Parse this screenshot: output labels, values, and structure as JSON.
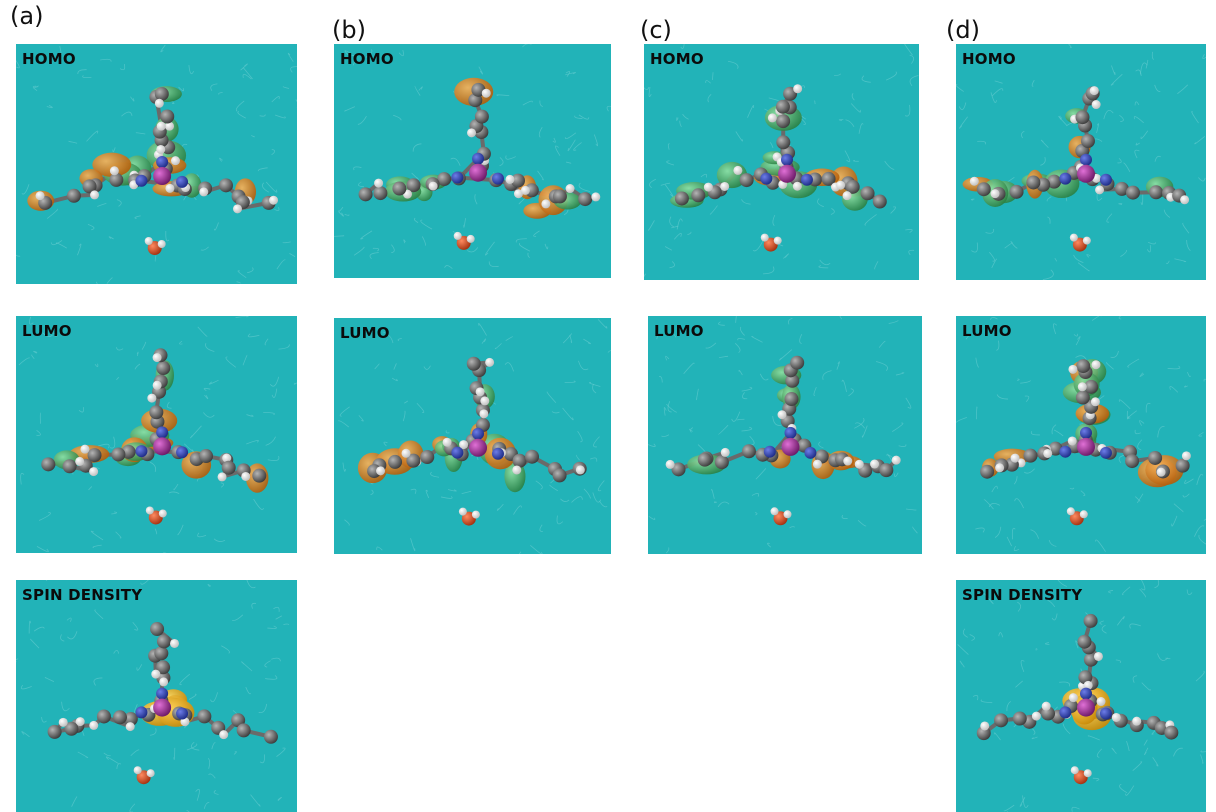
{
  "column_labels": [
    "(a)",
    "(b)",
    "(c)",
    "(d)"
  ],
  "panel_titles": {
    "a_homo": "HOMO",
    "a_lumo": "LUMO",
    "a_spin": "SPIN DENSITY",
    "b_homo": "HOMO",
    "b_lumo": "LUMO",
    "c_homo": "HOMO",
    "c_lumo": "LUMO",
    "d_homo": "HOMO",
    "d_lumo": "LUMO",
    "d_spin": "SPIN DENSITY"
  },
  "colors": {
    "background": "#22b3b8",
    "carbon": "#5a5a5a",
    "hydrogen": "#f2f2f2",
    "nitrogen": "#2b3fb8",
    "oxygen": "#d84a1b",
    "metal": "#a4329a",
    "orbital_positive": "#e0851c",
    "orbital_negative": "#3fae5c",
    "spin_density": "#f0b020"
  }
}
